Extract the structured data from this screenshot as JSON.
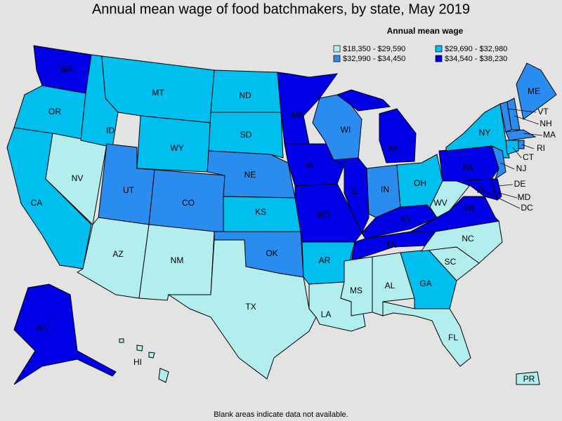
{
  "title": "Annual mean wage of food batchmakers, by state, May 2019",
  "legend": {
    "title": "Annual mean wage",
    "items": [
      {
        "label": "$18,350 - $29,590",
        "color": "#b3eeee"
      },
      {
        "label": "$29,690 - $32,980",
        "color": "#00bfef"
      },
      {
        "label": "$32,990 - $34,450",
        "color": "#2b8cf0"
      },
      {
        "label": "$34,540 - $38,230",
        "color": "#0000e6"
      }
    ]
  },
  "states": [
    {
      "abbr": "WA",
      "group": 3
    },
    {
      "abbr": "OR",
      "group": 1
    },
    {
      "abbr": "CA",
      "group": 1
    },
    {
      "abbr": "NV",
      "group": 0
    },
    {
      "abbr": "ID",
      "group": 1
    },
    {
      "abbr": "MT",
      "group": 1
    },
    {
      "abbr": "WY",
      "group": 1
    },
    {
      "abbr": "UT",
      "group": 2
    },
    {
      "abbr": "CO",
      "group": 2
    },
    {
      "abbr": "AZ",
      "group": 0
    },
    {
      "abbr": "NM",
      "group": 0
    },
    {
      "abbr": "ND",
      "group": 1
    },
    {
      "abbr": "SD",
      "group": 1
    },
    {
      "abbr": "NE",
      "group": 2
    },
    {
      "abbr": "KS",
      "group": 1
    },
    {
      "abbr": "OK",
      "group": 2
    },
    {
      "abbr": "TX",
      "group": 0
    },
    {
      "abbr": "MN",
      "group": 3
    },
    {
      "abbr": "IA",
      "group": 3
    },
    {
      "abbr": "MO",
      "group": 3
    },
    {
      "abbr": "AR",
      "group": 1
    },
    {
      "abbr": "LA",
      "group": 0
    },
    {
      "abbr": "WI",
      "group": 2
    },
    {
      "abbr": "IL",
      "group": 3
    },
    {
      "abbr": "MI",
      "group": 3
    },
    {
      "abbr": "IN",
      "group": 2
    },
    {
      "abbr": "OH",
      "group": 1
    },
    {
      "abbr": "KY",
      "group": 3
    },
    {
      "abbr": "TN",
      "group": 3
    },
    {
      "abbr": "MS",
      "group": 0
    },
    {
      "abbr": "AL",
      "group": 0
    },
    {
      "abbr": "GA",
      "group": 1
    },
    {
      "abbr": "FL",
      "group": 0
    },
    {
      "abbr": "SC",
      "group": 0
    },
    {
      "abbr": "NC",
      "group": 0
    },
    {
      "abbr": "VA",
      "group": 3
    },
    {
      "abbr": "WV",
      "group": 0
    },
    {
      "abbr": "PA",
      "group": 3
    },
    {
      "abbr": "NY",
      "group": 1
    },
    {
      "abbr": "NJ",
      "group": 2
    },
    {
      "abbr": "MD",
      "group": 3
    },
    {
      "abbr": "DE",
      "group": 3
    },
    {
      "abbr": "VT",
      "group": 2
    },
    {
      "abbr": "NH",
      "group": 2
    },
    {
      "abbr": "ME",
      "group": 2
    },
    {
      "abbr": "MA",
      "group": 2
    },
    {
      "abbr": "CT",
      "group": 1
    },
    {
      "abbr": "RI",
      "group": 2
    },
    {
      "abbr": "DC",
      "group": 3
    },
    {
      "abbr": "AK",
      "group": 3
    },
    {
      "abbr": "HI",
      "group": 0
    },
    {
      "abbr": "PR",
      "group": 0
    }
  ],
  "footnote": "Blank areas indicate data not available."
}
